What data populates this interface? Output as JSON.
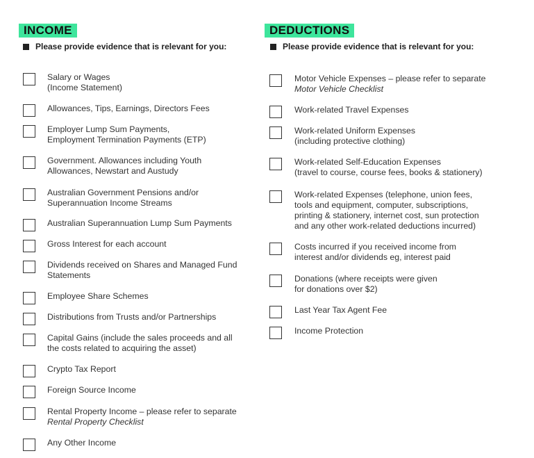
{
  "income": {
    "title": "INCOME",
    "instruction": "Please provide evidence that is relevant for you:",
    "items": [
      {
        "lines": [
          "Salary or Wages",
          "(Income Statement)"
        ]
      },
      {
        "lines": [
          "Allowances, Tips, Earnings, Directors Fees"
        ]
      },
      {
        "lines": [
          "Employer Lump Sum Payments,",
          "Employment Termination Payments (ETP)"
        ]
      },
      {
        "lines": [
          "Government. Allowances including Youth",
          "Allowances, Newstart and Austudy"
        ]
      },
      {
        "lines": [
          "Australian Government Pensions and/or",
          "Superannuation Income Streams"
        ]
      },
      {
        "lines": [
          "Australian Superannuation Lump Sum Payments"
        ]
      },
      {
        "lines": [
          "Gross Interest for each account"
        ]
      },
      {
        "lines": [
          "Dividends received on Shares and Managed Fund",
          "Statements"
        ]
      },
      {
        "lines": [
          "Employee Share Schemes"
        ]
      },
      {
        "lines": [
          "Distributions from Trusts and/or Partnerships"
        ]
      },
      {
        "lines": [
          "Capital Gains (include the sales proceeds and all",
          "the costs related to acquiring the asset)"
        ]
      },
      {
        "lines": [
          "Crypto Tax Report"
        ]
      },
      {
        "lines": [
          "Foreign Source Income"
        ]
      },
      {
        "lines": [
          "Rental Property Income – please refer to separate"
        ],
        "reference": "Rental Property Checklist"
      },
      {
        "lines": [
          "Any Other Income"
        ]
      }
    ]
  },
  "deductions": {
    "title": "DEDUCTIONS",
    "instruction": "Please provide evidence that is relevant for you:",
    "items": [
      {
        "lines": [
          "Motor Vehicle Expenses – please refer to separate"
        ],
        "reference": "Motor Vehicle Checklist"
      },
      {
        "lines": [
          "Work-related Travel Expenses"
        ]
      },
      {
        "lines": [
          "Work-related Uniform Expenses",
          "(including protective clothing)"
        ]
      },
      {
        "lines": [
          "Work-related Self-Education Expenses",
          "(travel to course, course fees, books & stationery)"
        ]
      },
      {
        "lines": [
          "Work-related Expenses (telephone, union fees,",
          "tools and equipment, computer, subscriptions,",
          "printing & stationery, internet cost, sun protection",
          "and any other work-related deductions incurred)"
        ]
      },
      {
        "lines": [
          "Costs incurred if you received income from",
          "interest and/or dividends eg, interest paid"
        ]
      },
      {
        "lines": [
          "Donations (where receipts were given",
          "for donations over $2)"
        ]
      },
      {
        "lines": [
          "Last Year Tax Agent Fee"
        ]
      },
      {
        "lines": [
          "Income Protection"
        ]
      }
    ]
  }
}
